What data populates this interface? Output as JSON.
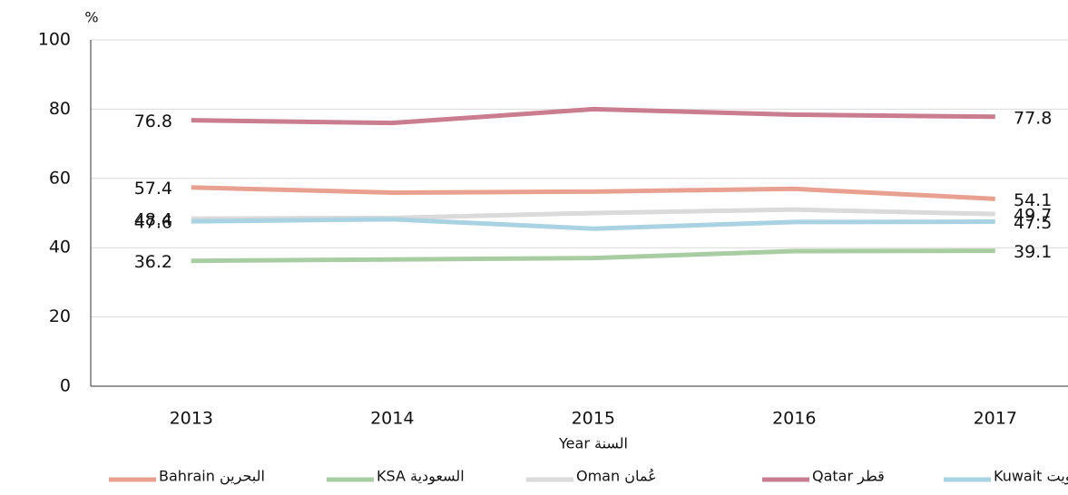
{
  "chart_data": {
    "type": "line",
    "x_label": "Year السنة",
    "y_label": "%",
    "categories": [
      "2013",
      "2014",
      "2015",
      "2016",
      "2017"
    ],
    "series": [
      {
        "name": "Bahrain البحرين",
        "color": "#e8a191",
        "values": [
          57.4,
          55.9,
          56.2,
          57.0,
          54.1
        ]
      },
      {
        "name": "KSA السعودية",
        "color": "#a9cda2",
        "values": [
          36.2,
          36.6,
          37.0,
          39.0,
          39.1
        ]
      },
      {
        "name": "Oman عُمان",
        "color": "#dadada",
        "values": [
          48.4,
          48.6,
          50.0,
          51.0,
          49.7
        ]
      },
      {
        "name": "Qatar قطر",
        "color": "#c97d8f",
        "values": [
          76.8,
          76.0,
          80.0,
          78.4,
          77.8
        ]
      },
      {
        "name": "Kuwait الكويت",
        "color": "#a9d2e2",
        "values": [
          47.6,
          48.2,
          45.5,
          47.4,
          47.5
        ]
      }
    ],
    "ylim": [
      0,
      100
    ],
    "yticks": [
      0,
      20,
      40,
      60,
      80,
      100
    ],
    "grid": true
  }
}
